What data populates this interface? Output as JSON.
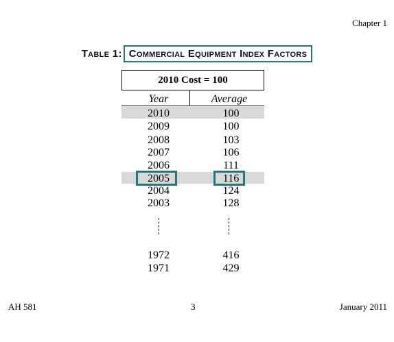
{
  "header": {
    "chapter": "Chapter 1"
  },
  "table": {
    "label": "Table 1:",
    "title": "Commercial Equipment Index Factors",
    "base": "2010 Cost = 100",
    "columns": {
      "year": "Year",
      "average": "Average"
    },
    "rows": [
      {
        "year": "2010",
        "average": "100"
      },
      {
        "year": "2009",
        "average": "100"
      },
      {
        "year": "2008",
        "average": "103"
      },
      {
        "year": "2007",
        "average": "106"
      },
      {
        "year": "2006",
        "average": "111"
      },
      {
        "year": "2005",
        "average": "116"
      },
      {
        "year": "2004",
        "average": "124"
      },
      {
        "year": "2003",
        "average": "128"
      },
      {
        "year": "1972",
        "average": "416"
      },
      {
        "year": "1971",
        "average": "429"
      }
    ],
    "highlight_color": "#1f7a7a",
    "shade_color": "#d9d9d9"
  },
  "footer": {
    "doc": "AH 581",
    "page": "3",
    "date": "January 2011"
  }
}
